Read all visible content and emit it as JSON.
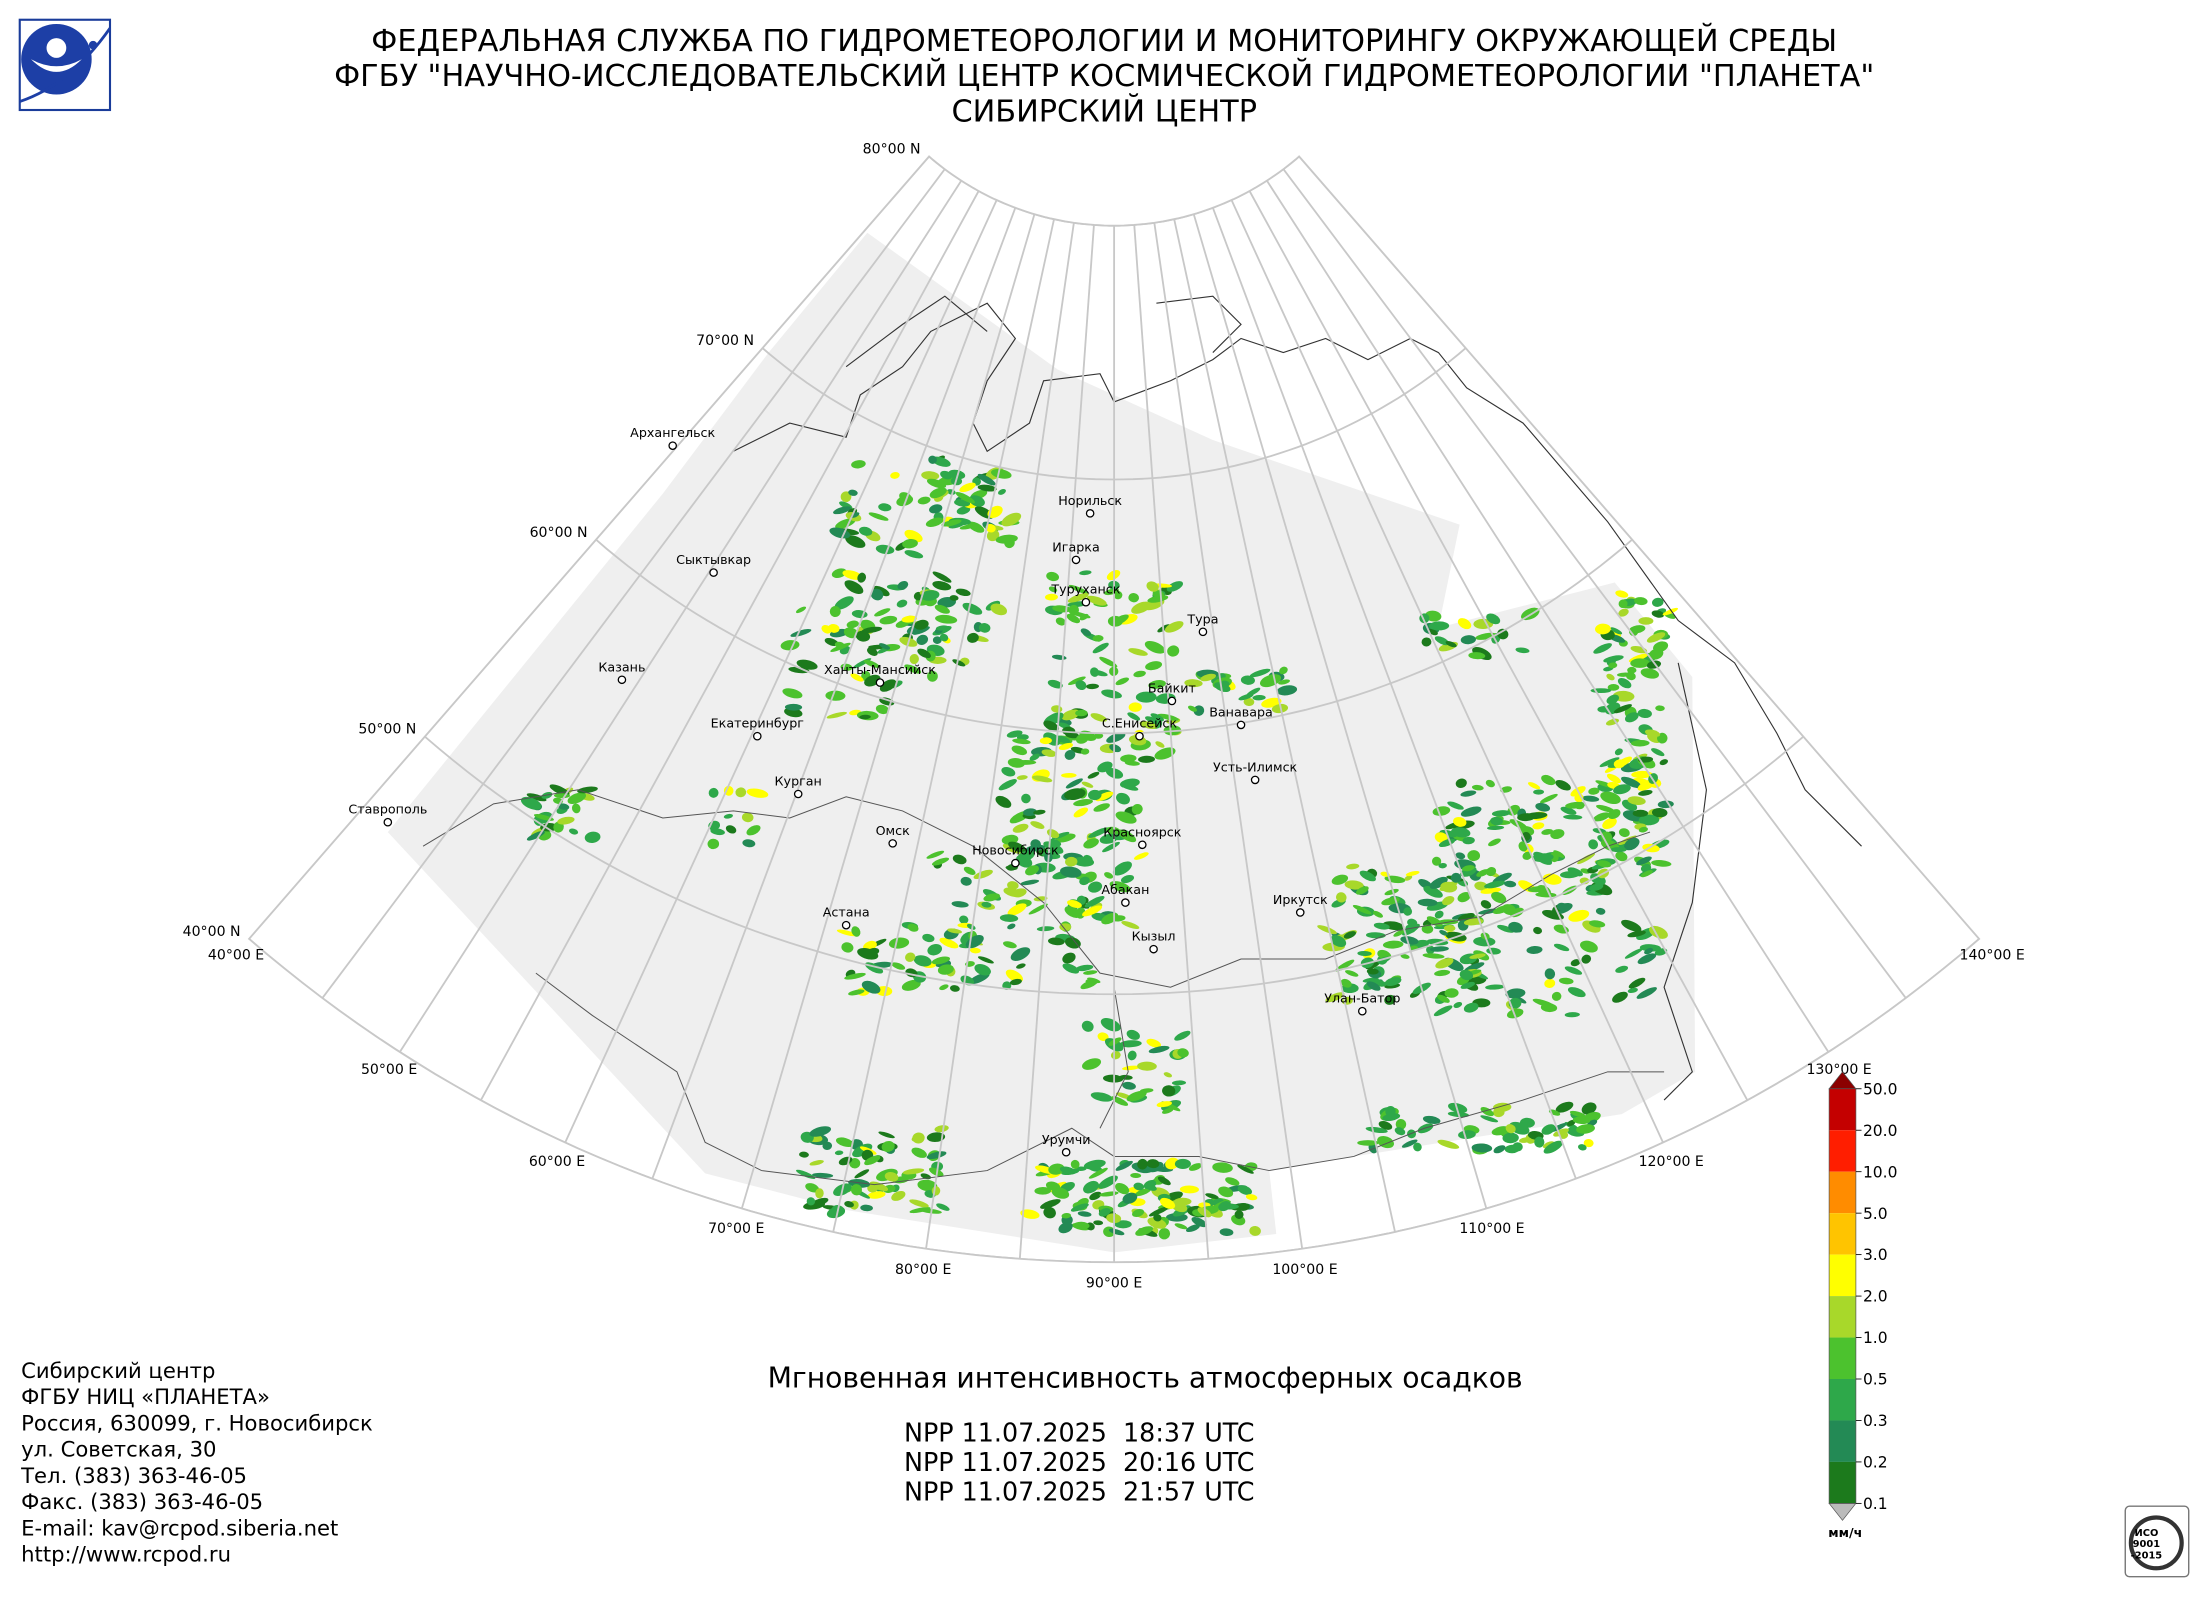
{
  "header": {
    "lines": [
      "ФЕДЕРАЛЬНАЯ СЛУЖБА ПО ГИДРОМЕТЕОРОЛОГИИ И МОНИТОРИНГУ ОКРУЖАЮЩЕЙ СРЕДЫ",
      "ФГБУ \"НАУЧНО-ИССЛЕДОВАТЕЛЬСКИЙ ЦЕНТР КОСМИЧЕСКОЙ ГИДРОМЕТЕОРОЛОГИИ \"ПЛАНЕТА\"",
      "СИБИРСКИЙ ЦЕНТР"
    ]
  },
  "map": {
    "lat_labels": [
      "80°00 N",
      "70°00 N",
      "60°00 N",
      "50°00 N",
      "40°00 N"
    ],
    "lon_labels": [
      "40°00 E",
      "50°00 E",
      "60°00 E",
      "70°00 E",
      "80°00 E",
      "90°00 E",
      "100°00 E",
      "110°00 E",
      "120°00 E",
      "130°00 E",
      "140°00 E"
    ],
    "cities": [
      "Архангельск",
      "Сыктывкар",
      "Казань",
      "Екатеринбург",
      "Курган",
      "Ставрополь",
      "Ханты-Мансийск",
      "Омск",
      "Астана",
      "Новосибирск",
      "Норильск",
      "Игарка",
      "Туруханск",
      "Тура",
      "Байкит",
      "Ванавара",
      "С.Енисейск",
      "Усть-Илимск",
      "Красноярск",
      "Абакан",
      "Кызыл",
      "Иркутск",
      "Улан-Батор",
      "Урумчи"
    ]
  },
  "legend": {
    "labels": [
      "50.0",
      "20.0",
      "10.0",
      "5.0",
      "3.0",
      "2.0",
      "1.0",
      "0.5",
      "0.3",
      "0.2",
      "0.1"
    ],
    "colors": [
      "#c40000",
      "#ff1e00",
      "#ff8c00",
      "#ffc400",
      "#ffff00",
      "#a8d82a",
      "#4cc22e",
      "#2ea84a",
      "#238a55",
      "#1c7a1c"
    ],
    "unit": "мм/ч"
  },
  "product": {
    "title": "Мгновенная интенсивность атмосферных осадков",
    "passes": [
      "NPP 11.07.2025  18:37 UTC",
      "NPP 11.07.2025  20:16 UTC",
      "NPP 11.07.2025  21:57 UTC"
    ]
  },
  "contacts": [
    "Сибирский центр",
    "ФГБУ НИЦ «ПЛАНЕТА»",
    "Россия, 630099, г. Новосибирск",
    "ул. Советская, 30",
    "Тел. (383) 363-46-05",
    "Факс. (383) 363-46-05",
    "E-mail: kav@rcpod.siberia.net",
    "http://www.rcpod.ru"
  ],
  "certificate": {
    "lines": [
      "ИСО",
      "9001",
      "-2015"
    ]
  }
}
